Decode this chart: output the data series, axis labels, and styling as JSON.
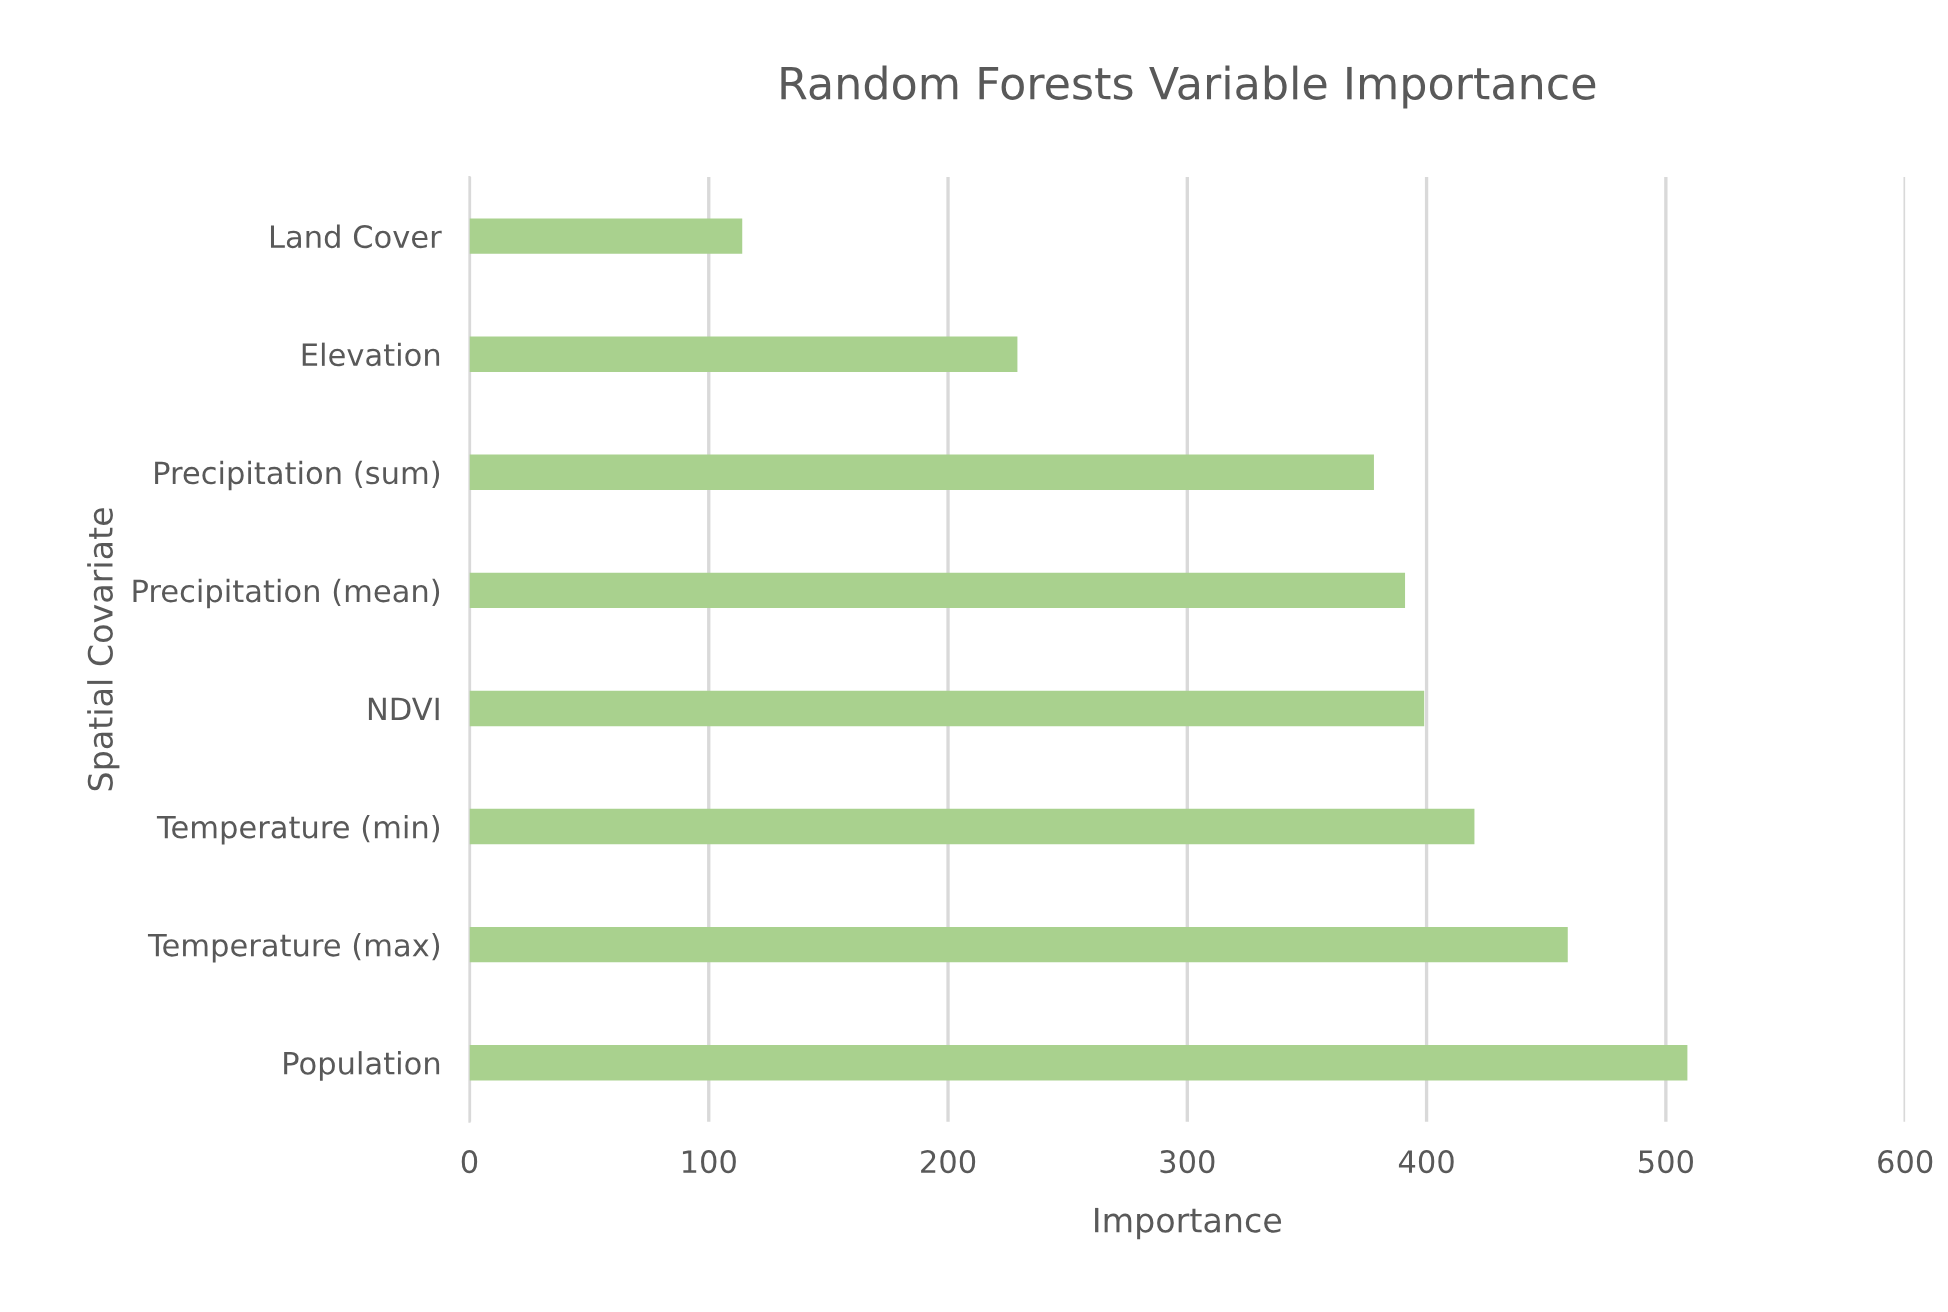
{
  "chart_data": {
    "type": "bar",
    "orientation": "horizontal",
    "title": "Random Forests Variable Importance",
    "xlabel": "Importance",
    "ylabel": "Spatial Covariate",
    "categories": [
      "Land Cover",
      "Elevation",
      "Precipitation (sum)",
      "Precipitation (mean)",
      "NDVI",
      "Temperature (min)",
      "Temperature (max)",
      "Population"
    ],
    "values": [
      114,
      229,
      378,
      391,
      399,
      420,
      459,
      509
    ],
    "color": "#a9d18e",
    "xlim": [
      0,
      600
    ],
    "xticks": [
      0,
      100,
      200,
      300,
      400,
      500,
      600
    ],
    "grid": "x"
  }
}
